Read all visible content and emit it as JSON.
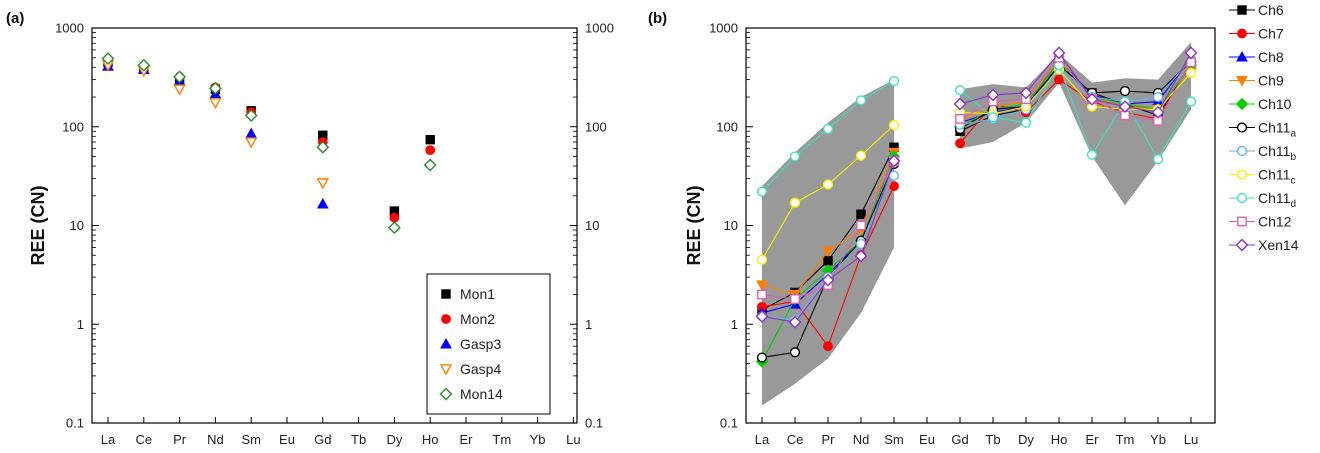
{
  "chart_data": [
    {
      "type": "scatter",
      "panel_label": "(a)",
      "ylabel": "REE (CN)",
      "yscale": "log",
      "ylim": [
        0.1,
        1000
      ],
      "y_ticks": [
        "0.1",
        "1",
        "10",
        "100",
        "1000"
      ],
      "categories": [
        "La",
        "Ce",
        "Pr",
        "Nd",
        "Sm",
        "Eu",
        "Gd",
        "Tb",
        "Dy",
        "Ho",
        "Er",
        "Tm",
        "Yb",
        "Lu"
      ],
      "legend": "bottom-right",
      "series": [
        {
          "name": "Mon1",
          "marker": "square",
          "filled": true,
          "color": "#000000",
          "values": [
            450,
            390,
            290,
            240,
            145,
            null,
            82,
            null,
            14,
            74,
            null,
            null,
            null,
            null
          ]
        },
        {
          "name": "Mon2",
          "marker": "circle",
          "filled": true,
          "color": "#ff0000",
          "values": [
            470,
            410,
            320,
            250,
            140,
            null,
            70,
            null,
            12,
            58,
            null,
            null,
            null,
            null
          ]
        },
        {
          "name": "Gasp3",
          "marker": "triangle-up",
          "filled": true,
          "color": "#0000ff",
          "values": [
            410,
            380,
            290,
            215,
            85,
            null,
            16.5,
            null,
            null,
            null,
            null,
            null,
            null,
            null
          ]
        },
        {
          "name": "Gasp4",
          "marker": "triangle-down",
          "filled": false,
          "color": "#ff7f00",
          "values": [
            420,
            370,
            240,
            175,
            70,
            null,
            27,
            null,
            null,
            null,
            null,
            null,
            null,
            null
          ]
        },
        {
          "name": "Mon14",
          "marker": "diamond",
          "filled": false,
          "color": "#2e8b2e",
          "values": [
            490,
            420,
            320,
            245,
            130,
            null,
            62,
            null,
            9.5,
            41,
            null,
            null,
            null,
            null
          ]
        }
      ]
    },
    {
      "type": "line",
      "panel_label": "(b)",
      "ylabel": "REE (CN)",
      "yscale": "log",
      "ylim": [
        0.1,
        1000
      ],
      "y_ticks": [
        "0.1",
        "1",
        "10",
        "100",
        "1000"
      ],
      "categories": [
        "La",
        "Ce",
        "Pr",
        "Nd",
        "Sm",
        "Eu",
        "Gd",
        "Tb",
        "Dy",
        "Ho",
        "Er",
        "Tm",
        "Yb",
        "Lu"
      ],
      "legend": "outside-right",
      "envelope": {
        "color": "#999999",
        "segments": [
          {
            "upper": [
              25,
              55,
              110,
              200,
              300
            ],
            "lower": [
              0.15,
              0.25,
              0.45,
              1.3,
              6
            ],
            "start": 0
          },
          {
            "upper": [
              240,
              270,
              250,
              550,
              280,
              310,
              300,
              720
            ],
            "lower": [
              60,
              70,
              110,
              280,
              50,
              16,
              45,
              150
            ],
            "start": 6
          }
        ]
      },
      "series": [
        {
          "name": "Ch6",
          "marker": "square",
          "filled": true,
          "color": "#000000",
          "values": [
            1.4,
            2.1,
            4.4,
            13,
            62,
            null,
            90,
            130,
            150,
            420,
            220,
            170,
            130,
            430
          ]
        },
        {
          "name": "Ch7",
          "marker": "circle",
          "filled": true,
          "color": "#ff0000",
          "values": [
            1.5,
            1.7,
            0.6,
            5,
            25,
            null,
            68,
            170,
            140,
            300,
            180,
            140,
            120,
            450
          ]
        },
        {
          "name": "Ch8",
          "marker": "triangle-up",
          "filled": true,
          "color": "#0000ff",
          "values": [
            1.3,
            1.6,
            3.2,
            7,
            50,
            null,
            110,
            140,
            160,
            480,
            210,
            170,
            180,
            500
          ]
        },
        {
          "name": "Ch9",
          "marker": "triangle-down",
          "filled": true,
          "color": "#ff7f00",
          "values": [
            2.5,
            2,
            5.5,
            9,
            55,
            null,
            115,
            160,
            180,
            470,
            200,
            160,
            150,
            360
          ]
        },
        {
          "name": "Ch10",
          "marker": "diamond",
          "filled": true,
          "color": "#00cc00",
          "values": [
            0.42,
            1.8,
            3.5,
            7,
            50,
            null,
            100,
            150,
            170,
            450,
            200,
            170,
            150,
            420
          ]
        },
        {
          "name": "Ch11",
          "sub": "a",
          "marker": "circle",
          "filled": false,
          "color": "#000000",
          "values": [
            0.46,
            0.52,
            3,
            7,
            42,
            null,
            95,
            150,
            160,
            420,
            220,
            230,
            220,
            460
          ]
        },
        {
          "name": "Ch11",
          "sub": "b",
          "marker": "circle",
          "filled": false,
          "color": "#66b2e8",
          "values": [
            1.2,
            1.1,
            3,
            6.5,
            32,
            null,
            105,
            120,
            150,
            400,
            200,
            180,
            200,
            480
          ]
        },
        {
          "name": "Ch11",
          "sub": "c",
          "marker": "circle",
          "filled": false,
          "color": "#ffee00",
          "values": [
            4.5,
            17,
            26,
            51,
            104,
            null,
            140,
            135,
            160,
            380,
            160,
            150,
            150,
            350
          ]
        },
        {
          "name": "Ch11",
          "sub": "d",
          "marker": "circle",
          "filled": false,
          "color": "#40e0c0",
          "values": [
            22,
            50,
            95,
            185,
            290,
            null,
            235,
            125,
            110,
            420,
            52,
            180,
            47,
            180
          ]
        },
        {
          "name": "Ch12",
          "marker": "square",
          "filled": false,
          "color": "#e060b0",
          "values": [
            2,
            1.8,
            2.5,
            10,
            45,
            null,
            120,
            180,
            190,
            500,
            190,
            130,
            115,
            450
          ]
        },
        {
          "name": "Xen14",
          "marker": "diamond",
          "filled": false,
          "color": "#8833cc",
          "values": [
            1.2,
            1.05,
            2.8,
            4.9,
            45,
            null,
            170,
            210,
            220,
            560,
            190,
            160,
            140,
            560
          ]
        }
      ]
    }
  ]
}
